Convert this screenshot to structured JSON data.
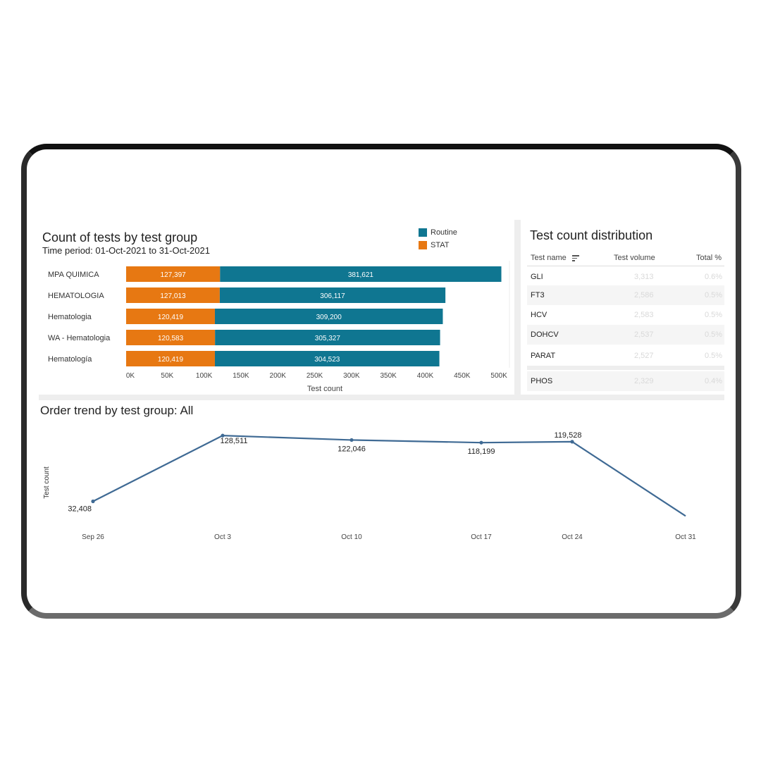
{
  "bar_chart": {
    "title": "Count of tests by test group",
    "subtitle": "Time period: 01-Oct-2021 to 31-Oct-2021",
    "legend": [
      {
        "name": "Routine",
        "color": "#0f7691"
      },
      {
        "name": "STAT",
        "color": "#e77812"
      }
    ],
    "xlabel": "Test count",
    "x_ticks": [
      "0K",
      "50K",
      "100K",
      "150K",
      "200K",
      "250K",
      "300K",
      "350K",
      "400K",
      "450K",
      "500K"
    ]
  },
  "table": {
    "title": "Test count distribution",
    "headers": {
      "name": "Test name",
      "volume": "Test volume",
      "total": "Total %"
    },
    "sort_icon": "sort-lines-icon",
    "rows": [
      {
        "name": "GLI",
        "volume": "3,313",
        "total": "0.6%"
      },
      {
        "name": "FT3",
        "volume": "2,586",
        "total": "0.5%"
      },
      {
        "name": "HCV",
        "volume": "2,583",
        "total": "0.5%"
      },
      {
        "name": "DOHCV",
        "volume": "2,537",
        "total": "0.5%"
      },
      {
        "name": "PARAT",
        "volume": "2,527",
        "total": "0.5%"
      },
      {
        "name": "PHOS",
        "volume": "2,329",
        "total": "0.4%"
      }
    ]
  },
  "line_chart": {
    "title": "Order trend by test group: All",
    "ylabel": "Test count",
    "line_color": "#3f6a94"
  },
  "chart_data": [
    {
      "type": "bar",
      "stacked": true,
      "orientation": "horizontal",
      "title": "Count of tests by test group",
      "subtitle": "Time period: 01-Oct-2021 to 31-Oct-2021",
      "categories": [
        "MPA QUIMICA",
        "HEMATOLOGIA",
        "Hematologia",
        "WA - Hematologia",
        "Hematología"
      ],
      "series": [
        {
          "name": "STAT",
          "values": [
            127397,
            127013,
            120419,
            120583,
            120419
          ],
          "labels": [
            "127,397",
            "127,013",
            "120,419",
            "120,583",
            "120,419"
          ]
        },
        {
          "name": "Routine",
          "values": [
            381621,
            306117,
            309200,
            305327,
            304523
          ],
          "labels": [
            "381,621",
            "306,117",
            "309,200",
            "305,327",
            "304,523"
          ]
        }
      ],
      "xlabel": "Test count",
      "ylabel": "",
      "xlim": [
        0,
        520000
      ],
      "legend": "top-right"
    },
    {
      "type": "line",
      "title": "Order trend by test group: All",
      "x": [
        "Sep 26",
        "Oct 3",
        "Oct 10",
        "Oct 17",
        "Oct 24",
        "Oct 31"
      ],
      "series": [
        {
          "values": [
            32408,
            128511,
            122046,
            118199,
            119528,
            11000
          ],
          "labels": [
            "32,408",
            "128,511",
            "122,046",
            "118,199",
            "119,528",
            ""
          ]
        }
      ],
      "ylabel": "Test count",
      "ylim": [
        0,
        140000
      ]
    }
  ]
}
